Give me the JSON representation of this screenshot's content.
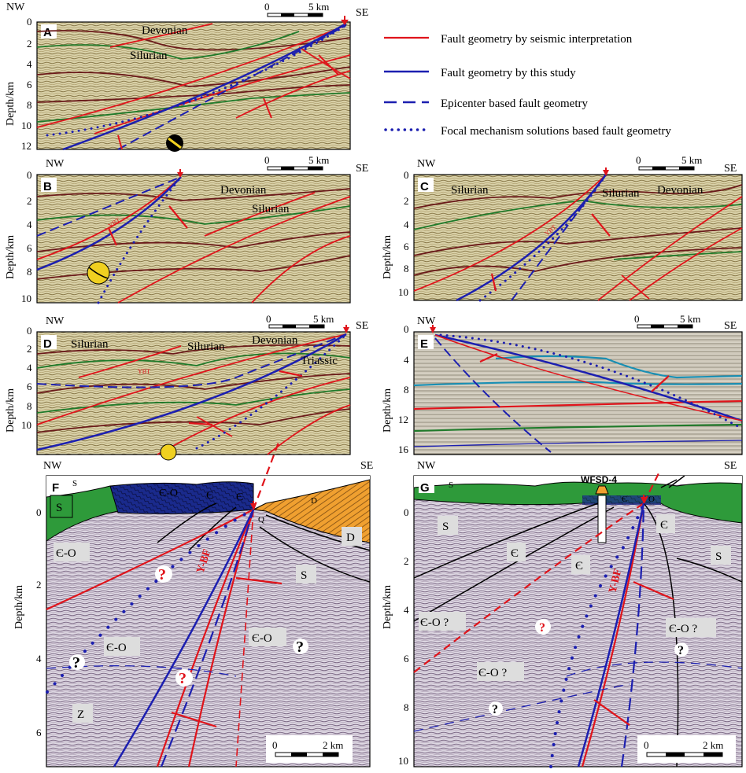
{
  "orientation": {
    "left": "NW",
    "right": "SE"
  },
  "depth_label": "Depth/km",
  "legend": [
    {
      "label": "Fault geometry by seismic interpretation",
      "color": "#e0141b",
      "style": "solid"
    },
    {
      "label": "Fault geometry by this study",
      "color": "#1c1fb0",
      "style": "solid"
    },
    {
      "label": "Epicenter based fault geometry",
      "color": "#1c1fb0",
      "style": "dashed"
    },
    {
      "label": "Focal mechanism solutions based fault geometry",
      "color": "#1c1fb0",
      "style": "dotted"
    }
  ],
  "colors": {
    "seismic_interp": "#e0141b",
    "this_study": "#1c1fb0",
    "green_horizon": "#1f7a2a",
    "brown_horizon": "#6b1a1a",
    "cyan_horizon": "#1a8fb3",
    "silurian": "#2e9a3a",
    "cambro_ordovician": "#1a2a8c",
    "devonian": "#f0a030"
  },
  "panels": {
    "A": {
      "label": "A",
      "scale": "5 km",
      "scale_start": "0",
      "ticks": [
        "0",
        "2",
        "4",
        "6",
        "8",
        "10",
        "12"
      ],
      "formations": [
        "Devonian",
        "Silurian"
      ]
    },
    "B": {
      "label": "B",
      "scale": "5 km",
      "scale_start": "0",
      "ticks": [
        "0",
        "2",
        "4",
        "6",
        "8",
        "10"
      ],
      "formations": [
        "Devonian",
        "Silurian"
      ],
      "fault": "YBT"
    },
    "C": {
      "label": "C",
      "scale": "5 km",
      "scale_start": "0",
      "ticks": [
        "0",
        "2",
        "4",
        "6",
        "8",
        "10"
      ],
      "formations": [
        "Silurian",
        "Silurian",
        "Devonian"
      ],
      "fault": "YBT"
    },
    "D": {
      "label": "D",
      "scale": "5 km",
      "scale_start": "0",
      "ticks": [
        "0",
        "2",
        "4",
        "6",
        "8",
        "10"
      ],
      "formations": [
        "Silurian",
        "Silurian",
        "Devonian",
        "Triassic"
      ],
      "fault": "YBT"
    },
    "E": {
      "label": "E",
      "scale": "5 km",
      "scale_start": "0",
      "ticks": [
        "0",
        "4",
        "8",
        "12",
        "16"
      ]
    },
    "F": {
      "label": "F",
      "scale": "2 km",
      "scale_start": "0",
      "ticks": [
        "0",
        "2",
        "4",
        "6"
      ],
      "fault": "Y-BF",
      "units": {
        "s": "S",
        "co": "Є-O",
        "e": "Є",
        "q": "Q",
        "d": "D",
        "z": "Z"
      },
      "query": "?"
    },
    "G": {
      "label": "G",
      "scale": "2 km",
      "scale_start": "0",
      "ticks": [
        "0",
        "2",
        "4",
        "6",
        "8",
        "10"
      ],
      "fault": "Y-BF",
      "well": "WFSD-4",
      "units": {
        "s": "S",
        "co": "Є-O",
        "e": "Є",
        "o": "O",
        "co_q": "Є-O ?"
      },
      "query": "?"
    }
  }
}
